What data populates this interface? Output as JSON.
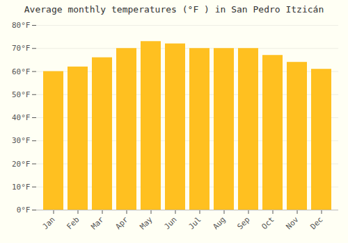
{
  "chart_data": {
    "type": "bar",
    "title": "Average monthly temperatures (°F ) in San Pedro Itzicán",
    "categories": [
      "Jan",
      "Feb",
      "Mar",
      "Apr",
      "May",
      "Jun",
      "Jul",
      "Aug",
      "Sep",
      "Oct",
      "Nov",
      "Dec"
    ],
    "values": [
      60,
      62,
      66,
      70,
      73,
      72,
      70,
      70,
      70,
      67,
      64,
      61
    ],
    "color": "#FFC020",
    "ylim": [
      0,
      80
    ],
    "yticks": [
      {
        "value": 0,
        "label": "0°F"
      },
      {
        "value": 10,
        "label": "10°F"
      },
      {
        "value": 20,
        "label": "20°F"
      },
      {
        "value": 30,
        "label": "30°F"
      },
      {
        "value": 40,
        "label": "40°F"
      },
      {
        "value": 50,
        "label": "50°F"
      },
      {
        "value": 60,
        "label": "60°F"
      },
      {
        "value": 70,
        "label": "70°F"
      },
      {
        "value": 80,
        "label": "80°F"
      }
    ],
    "grid": true
  }
}
